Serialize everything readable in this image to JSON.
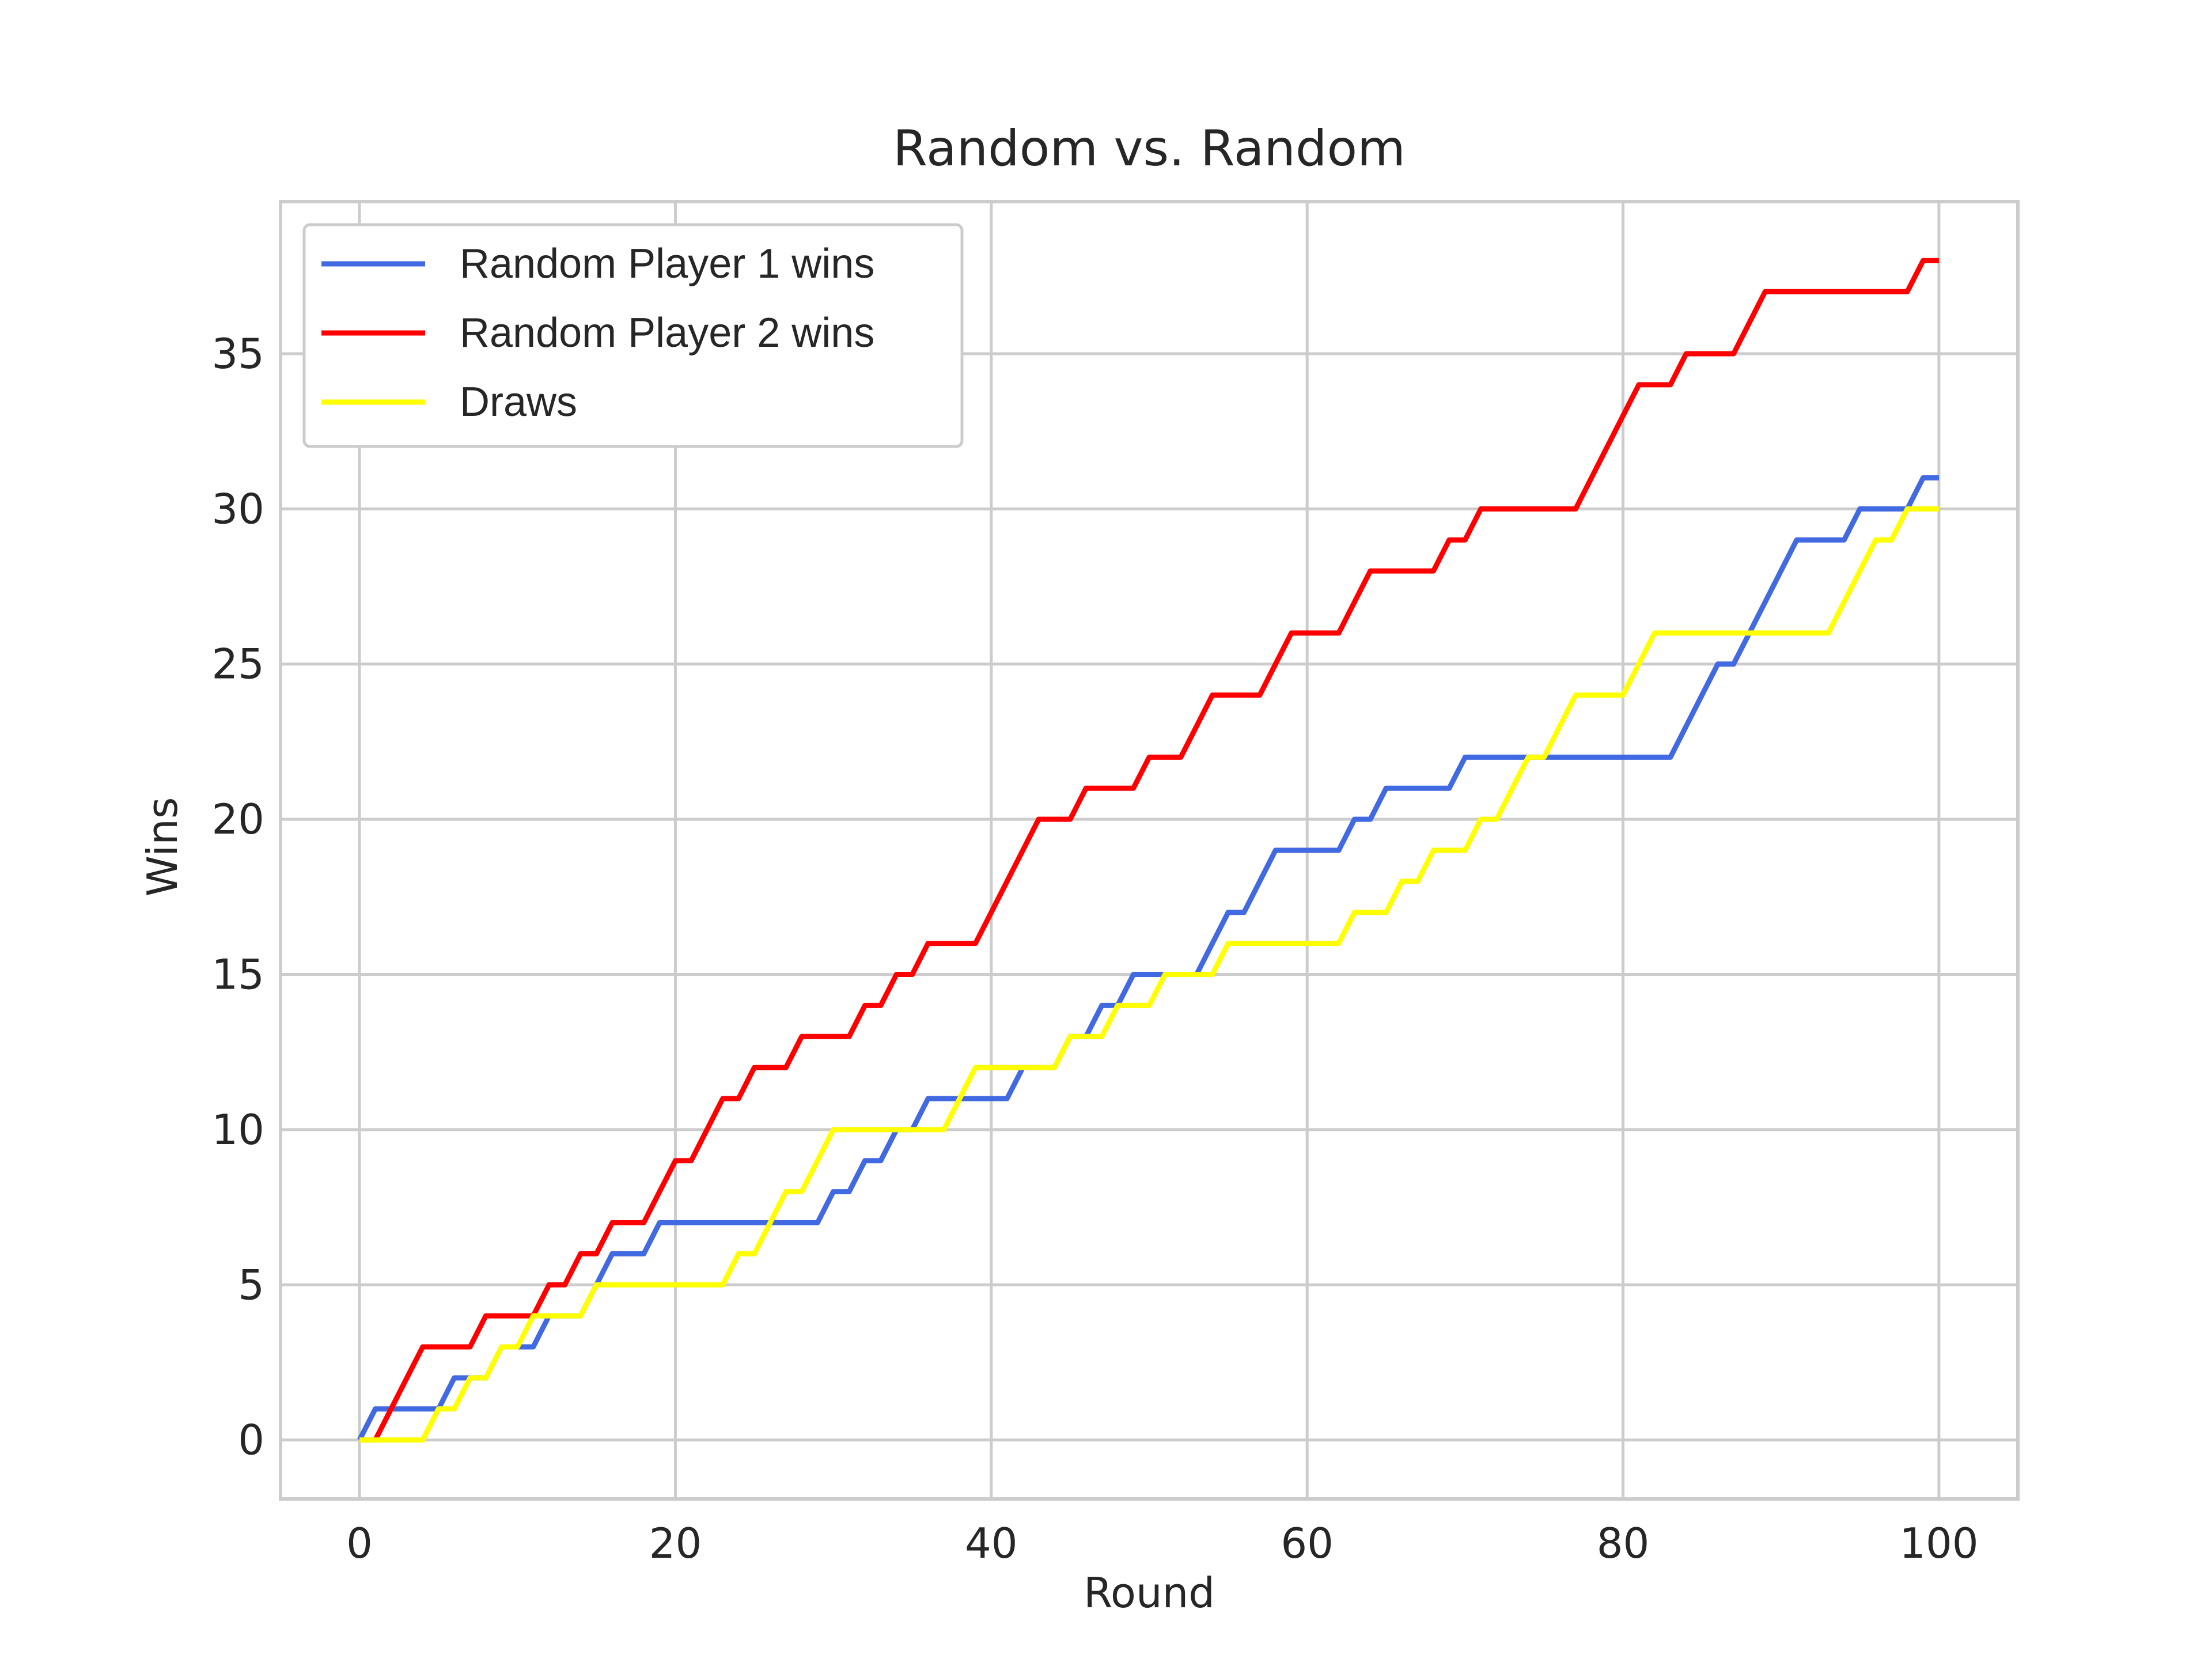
{
  "chart_data": {
    "type": "line",
    "title": "Random vs. Random",
    "xlabel": "Round",
    "ylabel": "Wins",
    "xlim": [
      -5,
      105
    ],
    "ylim": [
      -1.9,
      39.9
    ],
    "xticks": [
      0,
      20,
      40,
      60,
      80,
      100
    ],
    "yticks": [
      0,
      5,
      10,
      15,
      20,
      25,
      30,
      35
    ],
    "grid": true,
    "legend_position": "top-left",
    "series": [
      {
        "name": "Random Player 1 wins",
        "color": "#4169E1",
        "x": [
          0,
          1,
          2,
          3,
          4,
          5,
          6,
          7,
          8,
          9,
          10,
          11,
          12,
          13,
          14,
          15,
          16,
          17,
          18,
          19,
          20,
          21,
          22,
          23,
          24,
          25,
          26,
          27,
          28,
          29,
          30,
          31,
          32,
          33,
          34,
          35,
          36,
          37,
          38,
          39,
          40,
          41,
          42,
          43,
          44,
          45,
          46,
          47,
          48,
          49,
          50,
          51,
          52,
          53,
          54,
          55,
          56,
          57,
          58,
          59,
          60,
          61,
          62,
          63,
          64,
          65,
          66,
          67,
          68,
          69,
          70,
          71,
          72,
          73,
          74,
          75,
          76,
          77,
          78,
          79,
          80,
          81,
          82,
          83,
          84,
          85,
          86,
          87,
          88,
          89,
          90,
          91,
          92,
          93,
          94,
          95,
          96,
          97,
          98,
          99,
          100
        ],
        "y": [
          0,
          1,
          1,
          1,
          1,
          1,
          2,
          2,
          2,
          3,
          3,
          3,
          4,
          4,
          4,
          5,
          6,
          6,
          6,
          7,
          7,
          7,
          7,
          7,
          7,
          7,
          7,
          7,
          7,
          7,
          8,
          8,
          9,
          9,
          10,
          10,
          11,
          11,
          11,
          11,
          11,
          11,
          12,
          12,
          12,
          13,
          13,
          14,
          14,
          15,
          15,
          15,
          15,
          15,
          16,
          17,
          17,
          18,
          19,
          19,
          19,
          19,
          19,
          20,
          20,
          21,
          21,
          21,
          21,
          21,
          22,
          22,
          22,
          22,
          22,
          22,
          22,
          22,
          22,
          22,
          22,
          22,
          22,
          22,
          23,
          24,
          25,
          25,
          26,
          27,
          28,
          29,
          29,
          29,
          29,
          30,
          30,
          30,
          30,
          31,
          31
        ]
      },
      {
        "name": "Random Player 2 wins",
        "color": "#FF0000",
        "x": [
          0,
          1,
          2,
          3,
          4,
          5,
          6,
          7,
          8,
          9,
          10,
          11,
          12,
          13,
          14,
          15,
          16,
          17,
          18,
          19,
          20,
          21,
          22,
          23,
          24,
          25,
          26,
          27,
          28,
          29,
          30,
          31,
          32,
          33,
          34,
          35,
          36,
          37,
          38,
          39,
          40,
          41,
          42,
          43,
          44,
          45,
          46,
          47,
          48,
          49,
          50,
          51,
          52,
          53,
          54,
          55,
          56,
          57,
          58,
          59,
          60,
          61,
          62,
          63,
          64,
          65,
          66,
          67,
          68,
          69,
          70,
          71,
          72,
          73,
          74,
          75,
          76,
          77,
          78,
          79,
          80,
          81,
          82,
          83,
          84,
          85,
          86,
          87,
          88,
          89,
          90,
          91,
          92,
          93,
          94,
          95,
          96,
          97,
          98,
          99,
          100
        ],
        "y": [
          0,
          0,
          1,
          2,
          3,
          3,
          3,
          3,
          4,
          4,
          4,
          4,
          5,
          5,
          6,
          6,
          7,
          7,
          7,
          8,
          9,
          9,
          10,
          11,
          11,
          12,
          12,
          12,
          13,
          13,
          13,
          13,
          14,
          14,
          15,
          15,
          16,
          16,
          16,
          16,
          17,
          18,
          19,
          20,
          20,
          20,
          21,
          21,
          21,
          21,
          22,
          22,
          22,
          23,
          24,
          24,
          24,
          24,
          25,
          26,
          26,
          26,
          26,
          27,
          28,
          28,
          28,
          28,
          28,
          29,
          29,
          30,
          30,
          30,
          30,
          30,
          30,
          30,
          31,
          32,
          33,
          34,
          34,
          34,
          35,
          35,
          35,
          35,
          36,
          37,
          37,
          37,
          37,
          37,
          37,
          37,
          37,
          37,
          37,
          38,
          38
        ]
      },
      {
        "name": "Draws",
        "color": "#FFFF00",
        "x": [
          0,
          1,
          2,
          3,
          4,
          5,
          6,
          7,
          8,
          9,
          10,
          11,
          12,
          13,
          14,
          15,
          16,
          17,
          18,
          19,
          20,
          21,
          22,
          23,
          24,
          25,
          26,
          27,
          28,
          29,
          30,
          31,
          32,
          33,
          34,
          35,
          36,
          37,
          38,
          39,
          40,
          41,
          42,
          43,
          44,
          45,
          46,
          47,
          48,
          49,
          50,
          51,
          52,
          53,
          54,
          55,
          56,
          57,
          58,
          59,
          60,
          61,
          62,
          63,
          64,
          65,
          66,
          67,
          68,
          69,
          70,
          71,
          72,
          73,
          74,
          75,
          76,
          77,
          78,
          79,
          80,
          81,
          82,
          83,
          84,
          85,
          86,
          87,
          88,
          89,
          90,
          91,
          92,
          93,
          94,
          95,
          96,
          97,
          98,
          99,
          100
        ],
        "y": [
          0,
          0,
          0,
          0,
          0,
          1,
          1,
          2,
          2,
          3,
          3,
          4,
          4,
          4,
          4,
          5,
          5,
          5,
          5,
          5,
          5,
          5,
          5,
          5,
          6,
          6,
          7,
          8,
          8,
          9,
          10,
          10,
          10,
          10,
          10,
          10,
          10,
          10,
          11,
          12,
          12,
          12,
          12,
          12,
          12,
          13,
          13,
          13,
          14,
          14,
          14,
          15,
          15,
          15,
          15,
          16,
          16,
          16,
          16,
          16,
          16,
          16,
          16,
          17,
          17,
          17,
          18,
          18,
          19,
          19,
          19,
          20,
          20,
          21,
          22,
          22,
          23,
          24,
          24,
          24,
          24,
          25,
          26,
          26,
          26,
          26,
          26,
          26,
          26,
          26,
          26,
          26,
          26,
          26,
          27,
          28,
          29,
          29,
          30,
          30,
          30
        ]
      }
    ]
  }
}
